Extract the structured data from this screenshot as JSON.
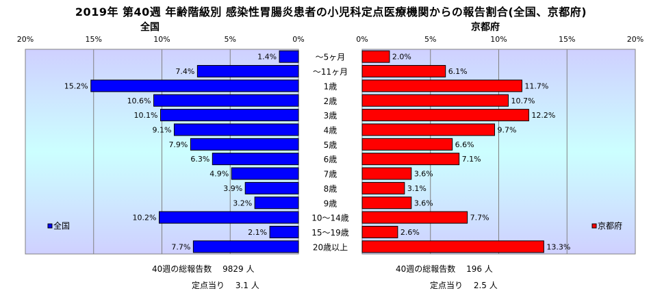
{
  "title": "2019年 第40週 年齢階級別 感染性胃腸炎患者の小児科定点医療機関からの報告割合(全国、京都府)",
  "chart_data": {
    "type": "bar",
    "orientation": "horizontal-butterfly",
    "categories": [
      "～5ヶ月",
      "～11ヶ月",
      "1歳",
      "2歳",
      "3歳",
      "4歳",
      "5歳",
      "6歳",
      "7歳",
      "8歳",
      "9歳",
      "10～14歳",
      "15～19歳",
      "20歳以上"
    ],
    "series": [
      {
        "name": "全国",
        "panel_title": "全国",
        "color": "#0000FF",
        "values": [
          1.4,
          7.4,
          15.2,
          10.6,
          10.1,
          9.1,
          7.9,
          6.3,
          4.9,
          3.9,
          3.2,
          10.2,
          2.1,
          7.7
        ],
        "xlim": [
          0,
          20
        ],
        "ticks": [
          "20%",
          "15%",
          "10%",
          "5%",
          "0%"
        ],
        "legend": "bottom-left"
      },
      {
        "name": "京都府",
        "panel_title": "京都府",
        "color": "#FF0000",
        "values": [
          2.0,
          6.1,
          11.7,
          10.7,
          12.2,
          9.7,
          6.6,
          7.1,
          3.6,
          3.1,
          3.6,
          7.7,
          2.6,
          13.3
        ],
        "xlim": [
          0,
          20
        ],
        "ticks": [
          "0%",
          "5%",
          "10%",
          "15%",
          "20%"
        ],
        "legend": "bottom-right"
      }
    ],
    "value_suffix": "%",
    "grid": true
  },
  "notes": {
    "national_total": "40週の総報告数　 9829 人",
    "national_per_point": "定点当り　 3.1 人",
    "kyoto_total": "40週の総報告数　 196 人",
    "kyoto_per_point": "定点当り　 2.5 人"
  }
}
